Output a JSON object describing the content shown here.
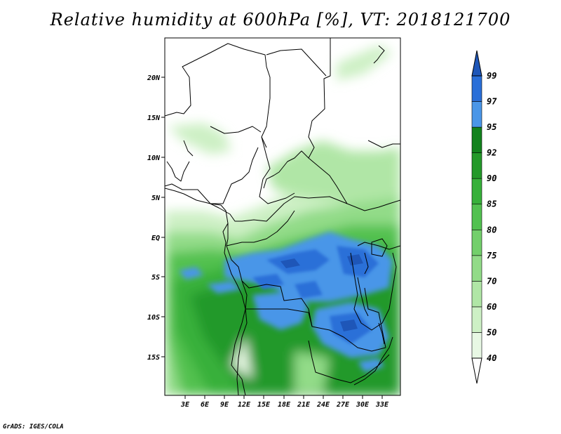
{
  "title": "Relative humidity at 600hPa [%], VT: 2018121700",
  "credit": "GrADS: IGES/COLA",
  "map": {
    "lon_range": [
      0,
      34
    ],
    "lat_range": [
      -19,
      25
    ],
    "lon_ticks": [
      "3E",
      "6E",
      "9E",
      "12E",
      "15E",
      "18E",
      "21E",
      "24E",
      "27E",
      "30E",
      "33E"
    ],
    "lat_ticks": [
      "20N",
      "15N",
      "10N",
      "5N",
      "EQ",
      "5S",
      "10S",
      "15S"
    ]
  },
  "colorbar": {
    "levels": [
      "40",
      "50",
      "60",
      "70",
      "75",
      "80",
      "85",
      "90",
      "92",
      "95",
      "97",
      "99"
    ],
    "colors": [
      "#e8f8e4",
      "#cdf0c5",
      "#b0e6a6",
      "#92db88",
      "#73cf6b",
      "#52c150",
      "#37b03a",
      "#24992a",
      "#12821d",
      "#4a96e8",
      "#2a6fd8",
      "#1e56b8"
    ]
  }
}
